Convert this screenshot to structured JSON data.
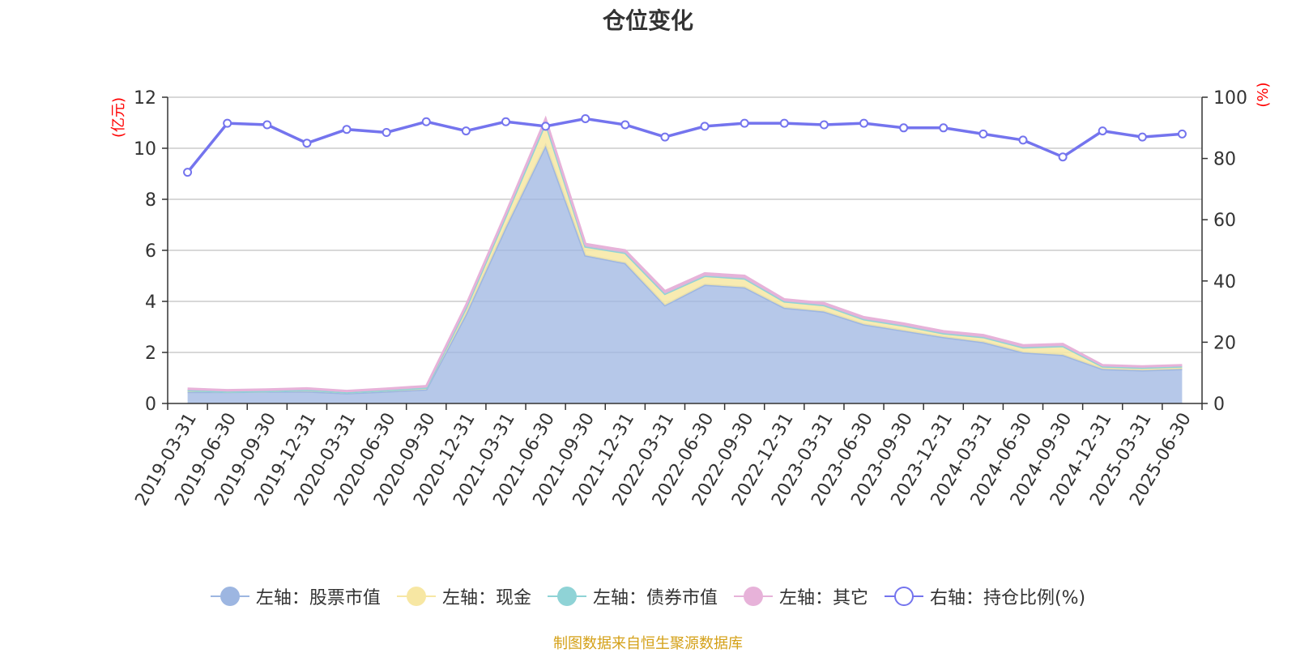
{
  "title": "仓位变化",
  "source": "制图数据来自恒生聚源数据库",
  "colors": {
    "stock": "#9db6e1",
    "cash": "#f7e7a3",
    "bond": "#8fd3d6",
    "other": "#e7b2d9",
    "ratio": "#7474ee"
  },
  "legend": [
    {
      "key": "stock",
      "label": "左轴：股票市值",
      "color": "#9db6e1",
      "hollow": false
    },
    {
      "key": "cash",
      "label": "左轴：现金",
      "color": "#f7e7a3",
      "hollow": false
    },
    {
      "key": "bond",
      "label": "左轴：债券市值",
      "color": "#8fd3d6",
      "hollow": false
    },
    {
      "key": "other",
      "label": "左轴：其它",
      "color": "#e7b2d9",
      "hollow": false
    },
    {
      "key": "ratio",
      "label": "右轴：持仓比例(%)",
      "color": "#7474ee",
      "hollow": true
    }
  ],
  "chart_data": {
    "type": "area",
    "title": "仓位变化",
    "ylabel_left": "(亿元)",
    "ylabel_right": "(%)",
    "ylim_left": [
      0,
      12
    ],
    "yticks_left": [
      0,
      2,
      4,
      6,
      8,
      10,
      12
    ],
    "ylim_right": [
      0,
      100
    ],
    "yticks_right": [
      0,
      20,
      40,
      60,
      80,
      100
    ],
    "grid": true,
    "legend_position": "bottom",
    "x": [
      "2019-03-31",
      "2019-06-30",
      "2019-09-30",
      "2019-12-31",
      "2020-03-31",
      "2020-06-30",
      "2020-09-30",
      "2020-12-31",
      "2021-03-31",
      "2021-06-30",
      "2021-09-30",
      "2021-12-31",
      "2022-03-31",
      "2022-06-30",
      "2022-09-30",
      "2022-12-31",
      "2023-03-31",
      "2023-06-30",
      "2023-09-30",
      "2023-12-31",
      "2024-03-31",
      "2024-06-30",
      "2024-09-30",
      "2024-12-31",
      "2025-03-31",
      "2025-06-30"
    ],
    "stacked_series": [
      {
        "name": "左轴：股票市值",
        "values": [
          0.45,
          0.45,
          0.47,
          0.47,
          0.4,
          0.47,
          0.55,
          3.5,
          6.9,
          10.1,
          5.8,
          5.5,
          3.85,
          4.65,
          4.55,
          3.75,
          3.6,
          3.1,
          2.85,
          2.6,
          2.4,
          2.0,
          1.9,
          1.35,
          1.3,
          1.35
        ]
      },
      {
        "name": "左轴：现金",
        "values": [
          0.07,
          0.02,
          0.02,
          0.06,
          0.04,
          0.05,
          0.07,
          0.25,
          0.45,
          0.9,
          0.35,
          0.4,
          0.45,
          0.35,
          0.35,
          0.25,
          0.25,
          0.2,
          0.2,
          0.15,
          0.2,
          0.2,
          0.35,
          0.1,
          0.1,
          0.1
        ]
      },
      {
        "name": "左轴：债券市值",
        "values": [
          0,
          0,
          0,
          0,
          0,
          0,
          0,
          0,
          0,
          0,
          0,
          0,
          0,
          0,
          0,
          0,
          0,
          0,
          0,
          0,
          0,
          0,
          0,
          0,
          0,
          0
        ]
      },
      {
        "name": "左轴：其它",
        "values": [
          0.06,
          0.05,
          0.06,
          0.06,
          0.05,
          0.06,
          0.06,
          0.1,
          0.1,
          0.15,
          0.1,
          0.1,
          0.1,
          0.1,
          0.1,
          0.08,
          0.08,
          0.08,
          0.08,
          0.08,
          0.08,
          0.08,
          0.08,
          0.05,
          0.05,
          0.05
        ]
      }
    ],
    "line_series": {
      "name": "右轴：持仓比例(%)",
      "values": [
        75.5,
        91.5,
        91,
        85,
        89.5,
        88.5,
        92,
        89,
        92,
        90.5,
        93,
        91,
        87,
        90.5,
        91.5,
        91.5,
        91,
        91.5,
        90,
        90,
        88,
        86,
        80.5,
        89,
        87,
        88
      ]
    }
  }
}
